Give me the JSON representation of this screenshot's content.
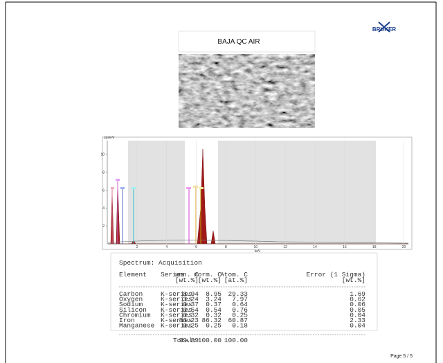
{
  "header": {
    "title": "BAJA QC AIR",
    "logo": "BRUKER"
  },
  "spectrum": {
    "y_label": "cps/eV",
    "x_label": "keV",
    "xlim": [
      0,
      20.3
    ],
    "ylim": [
      0,
      11.5
    ],
    "xticks": [
      2,
      4,
      6,
      8,
      10,
      12,
      14,
      16,
      18,
      20
    ],
    "yticks": [
      2,
      4,
      6,
      8,
      10
    ]
  },
  "table": {
    "title": "Spectrum: Acquisition",
    "columns": [
      [
        "Element"
      ],
      [
        "Series"
      ],
      [
        "unn. C",
        "[wt.%]"
      ],
      [
        "norm. C",
        "[wt.%]"
      ],
      [
        "Atom. C",
        "[at.%]"
      ],
      [
        "Error (1 Sigma)",
        "[wt.%]"
      ]
    ],
    "rows": [
      [
        "Carbon",
        "K-series",
        "8.94",
        "8.95",
        "29.33",
        "1.69"
      ],
      [
        "Oxygen",
        "K-series",
        "3.24",
        "3.24",
        "7.97",
        "0.62"
      ],
      [
        "Sodium",
        "K-series",
        "0.37",
        "0.37",
        "0.64",
        "0.06"
      ],
      [
        "Silicon",
        "K-series",
        "0.54",
        "0.54",
        "0.76",
        "0.05"
      ],
      [
        "Chromium",
        "K-series",
        "0.32",
        "0.32",
        "0.25",
        "0.04"
      ],
      [
        "Iron",
        "K-series",
        "86.23",
        "86.32",
        "60.87",
        "2.33"
      ],
      [
        "Manganese",
        "K-series",
        "0.25",
        "0.25",
        "0.18",
        "0.04"
      ]
    ],
    "total": {
      "label": "Total:",
      "values": [
        "99.89",
        "100.00",
        "100.00"
      ]
    }
  },
  "footer": {
    "page": "Page 5 / 5"
  }
}
